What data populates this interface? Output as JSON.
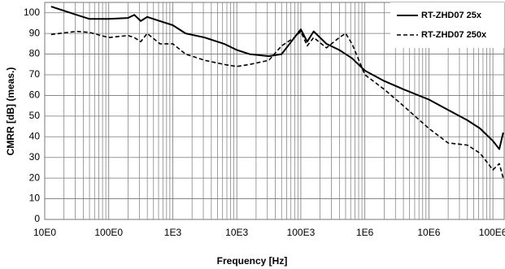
{
  "chart_data": {
    "type": "line",
    "x_label": "Frequency [Hz]",
    "y_label": "CMRR [dB] (meas.)",
    "x_log": true,
    "grid": true,
    "minor_grid": true,
    "legend": "top-right",
    "xlim": [
      10,
      150000000
    ],
    "ylim": [
      0,
      105
    ],
    "xticks": [
      {
        "value": 10,
        "label": "10E0"
      },
      {
        "value": 100,
        "label": "100E0"
      },
      {
        "value": 1000,
        "label": "1E3"
      },
      {
        "value": 10000,
        "label": "10E3"
      },
      {
        "value": 100000,
        "label": "100E3"
      },
      {
        "value": 1000000,
        "label": "1E6"
      },
      {
        "value": 10000000,
        "label": "10E6"
      },
      {
        "value": 100000000,
        "label": "100E6"
      }
    ],
    "yticks": [
      0,
      10,
      20,
      30,
      40,
      50,
      60,
      70,
      80,
      90,
      100
    ],
    "x": [
      12.6,
      31.6,
      50,
      100,
      200,
      251,
      316,
      398,
      631,
      1000,
      1585,
      3162,
      6310,
      10000,
      15849,
      31623,
      50119,
      79433,
      100000,
      125893,
      158489,
      251189,
      398107,
      501187,
      630957,
      1000000,
      1995262,
      3981072,
      10000000,
      19952623,
      39810717,
      63095734,
      100000000,
      125892541,
      145000000
    ],
    "series": [
      {
        "name": "RT-ZHD07 25x",
        "color": "#000000",
        "dash": false,
        "values": [
          103,
          99,
          97,
          97,
          97.5,
          99,
          96,
          98,
          96,
          94,
          90,
          88,
          85,
          82,
          80,
          79,
          80,
          88,
          92,
          86,
          91,
          85,
          82,
          80,
          78,
          72,
          67,
          63,
          58,
          53,
          48,
          44,
          38,
          34,
          42
        ]
      },
      {
        "name": "RT-ZHD07 250x",
        "color": "#000000",
        "dash": true,
        "values": [
          89.5,
          91,
          90.5,
          88,
          89,
          88,
          86,
          90,
          85,
          85,
          80,
          77,
          75,
          74,
          75,
          77,
          84,
          88,
          91,
          84,
          88,
          83,
          88,
          90,
          85,
          70,
          63,
          55,
          44,
          37,
          36,
          32,
          24,
          27,
          20
        ]
      }
    ]
  }
}
